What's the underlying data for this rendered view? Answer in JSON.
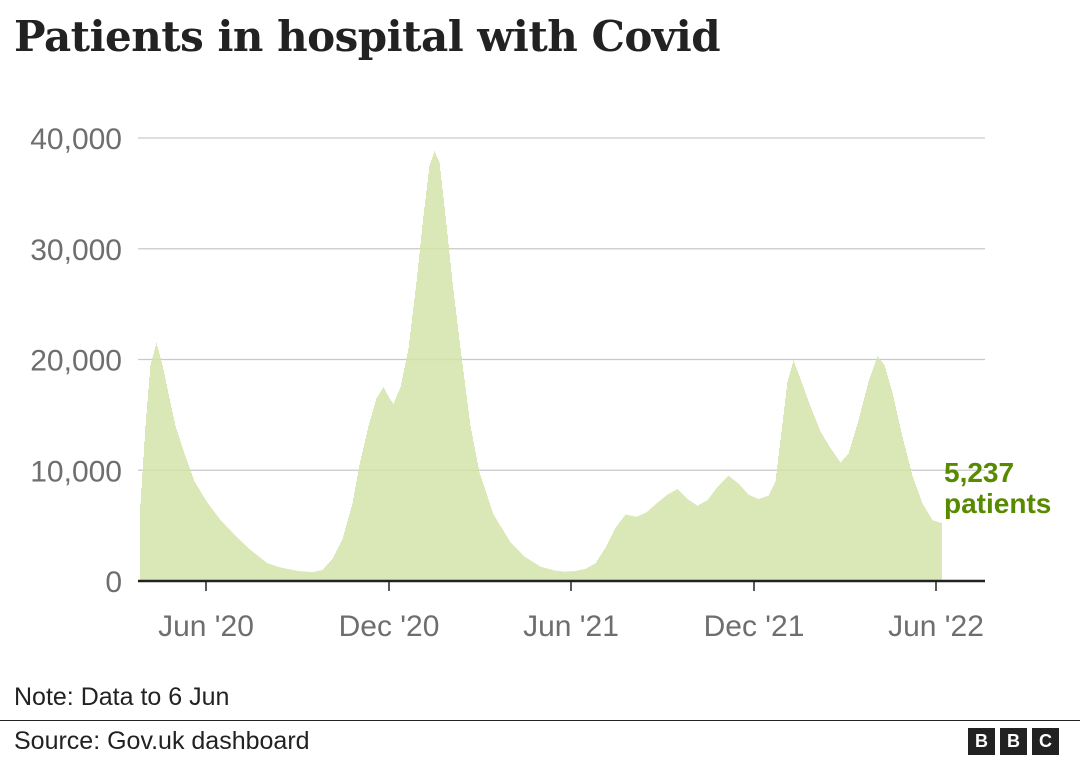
{
  "title": "Patients in hospital with Covid",
  "note": "Note: Data to 6 Jun",
  "source": "Source: Gov.uk dashboard",
  "logo": [
    "B",
    "B",
    "C"
  ],
  "colors": {
    "bars": "#d3e3a9",
    "bar_stroke": "#b9d08a",
    "annotation": "#588a00",
    "grid": "#c9c9c9",
    "axis": "#222222",
    "tick_text": "#6e6e6e"
  },
  "chart_data": {
    "type": "bar",
    "x_axis": "date",
    "ylim": [
      0,
      40000
    ],
    "yticks": [
      0,
      10000,
      20000,
      30000,
      40000
    ],
    "ytick_labels": [
      "0",
      "10,000",
      "20,000",
      "30,000",
      "40,000"
    ],
    "xticks": [
      {
        "date": "2020-06-01",
        "label": "Jun '20"
      },
      {
        "date": "2020-12-01",
        "label": "Dec '20"
      },
      {
        "date": "2021-06-01",
        "label": "Jun '21"
      },
      {
        "date": "2021-12-01",
        "label": "Dec '21"
      },
      {
        "date": "2022-06-01",
        "label": "Jun '22"
      }
    ],
    "xlim": [
      "2020-03-25",
      "2022-07-20"
    ],
    "grid": true,
    "series": [
      {
        "points": [
          [
            "2020-03-27",
            7000
          ],
          [
            "2020-04-01",
            14000
          ],
          [
            "2020-04-06",
            19500
          ],
          [
            "2020-04-12",
            21500
          ],
          [
            "2020-04-18",
            19500
          ],
          [
            "2020-04-25",
            16500
          ],
          [
            "2020-05-01",
            14000
          ],
          [
            "2020-05-10",
            11500
          ],
          [
            "2020-05-20",
            9000
          ],
          [
            "2020-06-01",
            7200
          ],
          [
            "2020-06-15",
            5500
          ],
          [
            "2020-07-01",
            4000
          ],
          [
            "2020-07-15",
            2800
          ],
          [
            "2020-08-01",
            1600
          ],
          [
            "2020-08-15",
            1200
          ],
          [
            "2020-09-01",
            900
          ],
          [
            "2020-09-15",
            800
          ],
          [
            "2020-09-25",
            1000
          ],
          [
            "2020-10-05",
            2000
          ],
          [
            "2020-10-15",
            3800
          ],
          [
            "2020-10-25",
            7000
          ],
          [
            "2020-11-01",
            10500
          ],
          [
            "2020-11-10",
            14000
          ],
          [
            "2020-11-18",
            16500
          ],
          [
            "2020-11-25",
            17500
          ],
          [
            "2020-12-01",
            16500
          ],
          [
            "2020-12-05",
            16000
          ],
          [
            "2020-12-12",
            17500
          ],
          [
            "2020-12-20",
            21000
          ],
          [
            "2020-12-28",
            27000
          ],
          [
            "2021-01-04",
            33000
          ],
          [
            "2021-01-10",
            37500
          ],
          [
            "2021-01-15",
            38800
          ],
          [
            "2021-01-20",
            37800
          ],
          [
            "2021-01-26",
            33000
          ],
          [
            "2021-02-02",
            27000
          ],
          [
            "2021-02-10",
            21000
          ],
          [
            "2021-02-20",
            14000
          ],
          [
            "2021-03-01",
            9800
          ],
          [
            "2021-03-15",
            6000
          ],
          [
            "2021-04-01",
            3500
          ],
          [
            "2021-04-15",
            2200
          ],
          [
            "2021-05-01",
            1300
          ],
          [
            "2021-05-15",
            950
          ],
          [
            "2021-05-25",
            850
          ],
          [
            "2021-06-05",
            900
          ],
          [
            "2021-06-15",
            1100
          ],
          [
            "2021-06-25",
            1600
          ],
          [
            "2021-07-05",
            3000
          ],
          [
            "2021-07-15",
            4800
          ],
          [
            "2021-07-25",
            6000
          ],
          [
            "2021-08-05",
            5800
          ],
          [
            "2021-08-15",
            6200
          ],
          [
            "2021-08-25",
            7000
          ],
          [
            "2021-09-05",
            7800
          ],
          [
            "2021-09-15",
            8300
          ],
          [
            "2021-09-25",
            7400
          ],
          [
            "2021-10-05",
            6800
          ],
          [
            "2021-10-15",
            7300
          ],
          [
            "2021-10-25",
            8500
          ],
          [
            "2021-11-05",
            9500
          ],
          [
            "2021-11-15",
            8800
          ],
          [
            "2021-11-25",
            7800
          ],
          [
            "2021-12-05",
            7400
          ],
          [
            "2021-12-15",
            7700
          ],
          [
            "2021-12-22",
            9000
          ],
          [
            "2021-12-28",
            13500
          ],
          [
            "2022-01-03",
            18000
          ],
          [
            "2022-01-09",
            19900
          ],
          [
            "2022-01-15",
            18500
          ],
          [
            "2022-01-25",
            16000
          ],
          [
            "2022-02-05",
            13500
          ],
          [
            "2022-02-15",
            12000
          ],
          [
            "2022-02-25",
            10700
          ],
          [
            "2022-03-05",
            11500
          ],
          [
            "2022-03-15",
            14500
          ],
          [
            "2022-03-25",
            18000
          ],
          [
            "2022-04-03",
            20300
          ],
          [
            "2022-04-10",
            19500
          ],
          [
            "2022-04-18",
            17000
          ],
          [
            "2022-04-28",
            13000
          ],
          [
            "2022-05-08",
            9500
          ],
          [
            "2022-05-18",
            7000
          ],
          [
            "2022-05-28",
            5500
          ],
          [
            "2022-06-06",
            5237
          ]
        ]
      }
    ],
    "annotation": {
      "value": "5,237",
      "unit": "patients"
    }
  }
}
